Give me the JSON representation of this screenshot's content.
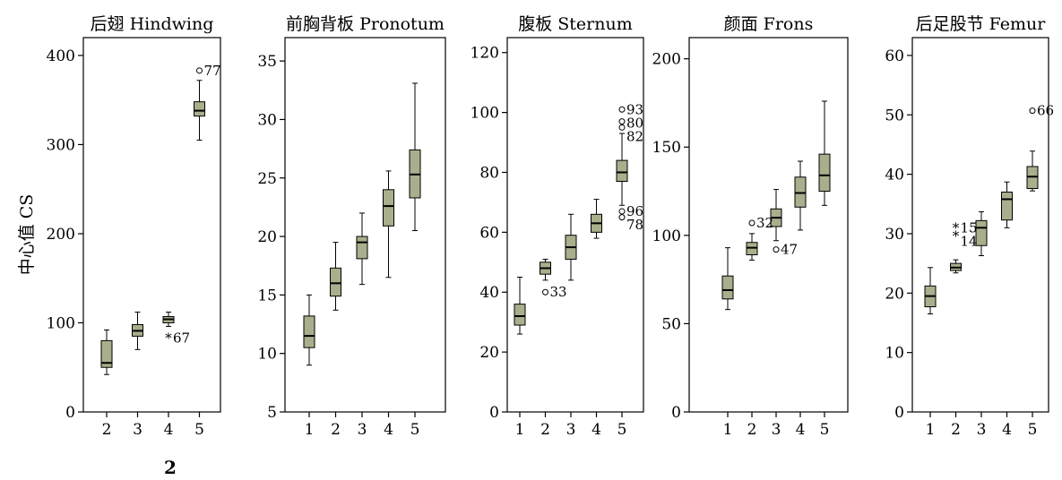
{
  "figure": {
    "y_axis_label": "中心值 CS",
    "figure_number": "2"
  },
  "colors": {
    "box_fill": "#aaae8c",
    "axis": "#000000",
    "background": "#ffffff"
  },
  "chart_data": [
    {
      "type": "boxplot",
      "title": "后翅 Hindwing",
      "categories": [
        "2",
        "3",
        "4",
        "5"
      ],
      "ylim": [
        0,
        420
      ],
      "yticks": [
        0,
        100,
        200,
        300,
        400
      ],
      "boxes": [
        {
          "x": "2",
          "whisker_low": 42,
          "q1": 50,
          "median": 55,
          "q3": 80,
          "whisker_high": 92
        },
        {
          "x": "3",
          "whisker_low": 70,
          "q1": 85,
          "median": 91,
          "q3": 98,
          "whisker_high": 112
        },
        {
          "x": "4",
          "whisker_low": 96,
          "q1": 100,
          "median": 104,
          "q3": 107,
          "whisker_high": 112
        },
        {
          "x": "5",
          "whisker_low": 305,
          "q1": 332,
          "median": 338,
          "q3": 348,
          "whisker_high": 372
        }
      ],
      "outliers": [
        {
          "x": "4",
          "y": 83,
          "marker": "star",
          "label": "67"
        },
        {
          "x": "5",
          "y": 383,
          "marker": "circle",
          "label": "77"
        }
      ]
    },
    {
      "type": "boxplot",
      "title": "前胸背板 Pronotum",
      "categories": [
        "1",
        "2",
        "3",
        "4",
        "5"
      ],
      "ylim": [
        5,
        37
      ],
      "yticks": [
        5,
        10,
        15,
        20,
        25,
        30,
        35
      ],
      "boxes": [
        {
          "x": "1",
          "whisker_low": 9,
          "q1": 10.5,
          "median": 11.5,
          "q3": 13.2,
          "whisker_high": 15
        },
        {
          "x": "2",
          "whisker_low": 13.7,
          "q1": 14.9,
          "median": 16,
          "q3": 17.3,
          "whisker_high": 19.5
        },
        {
          "x": "3",
          "whisker_low": 15.9,
          "q1": 18.1,
          "median": 19.5,
          "q3": 20,
          "whisker_high": 22
        },
        {
          "x": "4",
          "whisker_low": 16.5,
          "q1": 20.9,
          "median": 22.6,
          "q3": 24,
          "whisker_high": 25.6
        },
        {
          "x": "5",
          "whisker_low": 20.5,
          "q1": 23.3,
          "median": 25.3,
          "q3": 27.4,
          "whisker_high": 33.1
        }
      ],
      "outliers": []
    },
    {
      "type": "boxplot",
      "title": "腹板 Sternum",
      "categories": [
        "1",
        "2",
        "3",
        "4",
        "5"
      ],
      "ylim": [
        0,
        125
      ],
      "yticks": [
        0,
        20,
        40,
        60,
        80,
        100,
        120
      ],
      "boxes": [
        {
          "x": "1",
          "whisker_low": 26,
          "q1": 29,
          "median": 32,
          "q3": 36,
          "whisker_high": 45
        },
        {
          "x": "2",
          "whisker_low": 44,
          "q1": 46,
          "median": 48,
          "q3": 50,
          "whisker_high": 51
        },
        {
          "x": "3",
          "whisker_low": 44,
          "q1": 51,
          "median": 55,
          "q3": 59,
          "whisker_high": 66
        },
        {
          "x": "4",
          "whisker_low": 58,
          "q1": 60,
          "median": 63,
          "q3": 66,
          "whisker_high": 71
        },
        {
          "x": "5",
          "whisker_low": 69,
          "q1": 77,
          "median": 80,
          "q3": 84,
          "whisker_high": 93
        }
      ],
      "outliers": [
        {
          "x": "2",
          "y": 40,
          "marker": "circle",
          "label": "33"
        },
        {
          "x": "5",
          "y": 101,
          "marker": "circle",
          "label": "93"
        },
        {
          "x": "5",
          "y": 97,
          "marker": "circle",
          "label": "80"
        },
        {
          "x": "5",
          "y": 95,
          "marker": "circle",
          "label": "82"
        },
        {
          "x": "5",
          "y": 67,
          "marker": "circle",
          "label": "96"
        },
        {
          "x": "5",
          "y": 65,
          "marker": "circle",
          "label": "78"
        }
      ]
    },
    {
      "type": "boxplot",
      "title": "颜面 Frons",
      "categories": [
        "1",
        "2",
        "3",
        "4",
        "5"
      ],
      "ylim": [
        0,
        212
      ],
      "yticks": [
        0,
        50,
        100,
        150,
        200
      ],
      "boxes": [
        {
          "x": "1",
          "whisker_low": 58,
          "q1": 64,
          "median": 69,
          "q3": 77,
          "whisker_high": 93
        },
        {
          "x": "2",
          "whisker_low": 86,
          "q1": 89,
          "median": 93,
          "q3": 96,
          "whisker_high": 101
        },
        {
          "x": "3",
          "whisker_low": 97,
          "q1": 105,
          "median": 110,
          "q3": 115,
          "whisker_high": 126
        },
        {
          "x": "4",
          "whisker_low": 103,
          "q1": 116,
          "median": 124,
          "q3": 133,
          "whisker_high": 142
        },
        {
          "x": "5",
          "whisker_low": 117,
          "q1": 125,
          "median": 134,
          "q3": 146,
          "whisker_high": 176
        }
      ],
      "outliers": [
        {
          "x": "2",
          "y": 107,
          "marker": "circle",
          "label": "32"
        },
        {
          "x": "3",
          "y": 92,
          "marker": "circle",
          "label": "47"
        }
      ]
    },
    {
      "type": "boxplot",
      "title": "后足股节 Femur",
      "categories": [
        "1",
        "2",
        "3",
        "4",
        "5"
      ],
      "ylim": [
        0,
        63
      ],
      "yticks": [
        0,
        10,
        20,
        30,
        40,
        50,
        60
      ],
      "boxes": [
        {
          "x": "1",
          "whisker_low": 16.5,
          "q1": 17.7,
          "median": 19.5,
          "q3": 21.2,
          "whisker_high": 24.3
        },
        {
          "x": "2",
          "whisker_low": 23.4,
          "q1": 23.8,
          "median": 24.3,
          "q3": 25,
          "whisker_high": 25.6
        },
        {
          "x": "3",
          "whisker_low": 26.3,
          "q1": 28,
          "median": 31,
          "q3": 32.2,
          "whisker_high": 33.7
        },
        {
          "x": "4",
          "whisker_low": 31,
          "q1": 32.3,
          "median": 35.8,
          "q3": 37,
          "whisker_high": 38.7
        },
        {
          "x": "5",
          "whisker_low": 37.2,
          "q1": 37.6,
          "median": 39.6,
          "q3": 41.3,
          "whisker_high": 43.9
        }
      ],
      "outliers": [
        {
          "x": "2",
          "y": 31,
          "marker": "star",
          "label": "15"
        },
        {
          "x": "2",
          "y": 29.6,
          "marker": "star",
          "label": "14"
        },
        {
          "x": "5",
          "y": 50.7,
          "marker": "circle",
          "label": "66"
        }
      ]
    }
  ]
}
